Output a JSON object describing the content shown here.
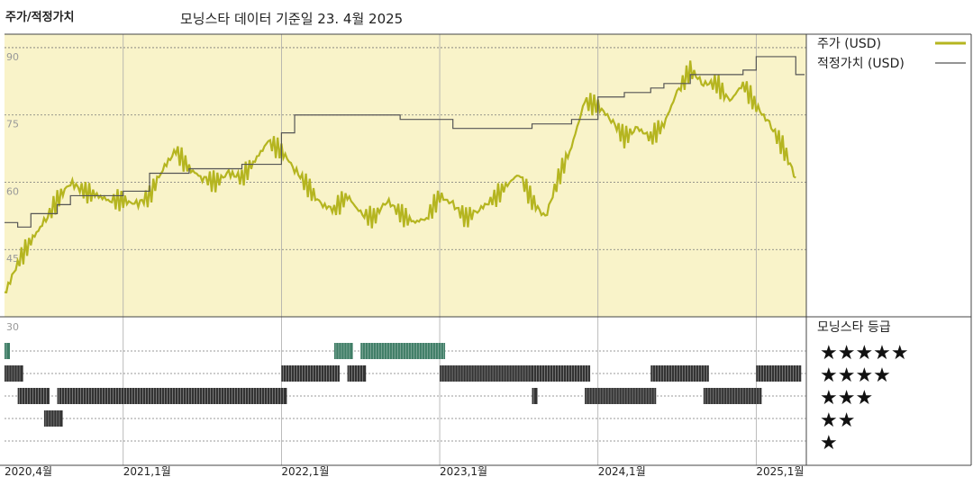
{
  "header": {
    "title": "주가/적정가치",
    "subtitle": "모닝스타 데이터 기준일 23. 4월 2025"
  },
  "colors": {
    "price": "#b5b520",
    "fair_value": "#555555",
    "panel_bg": "#f9f3c9",
    "bar_dark": "#333333",
    "bar_green": "#3f7d66"
  },
  "chart_data": {
    "type": "line",
    "title": "주가/적정가치",
    "subtitle": "모닝스타 데이터 기준일 23. 4월 2025",
    "ylim": [
      30,
      93
    ],
    "y_ticks": [
      90,
      75,
      60,
      45,
      30
    ],
    "x_ticks": [
      {
        "label": "2020,4월",
        "date": "2020-04"
      },
      {
        "label": "2021,1월",
        "date": "2021-01"
      },
      {
        "label": "2022,1월",
        "date": "2022-01"
      },
      {
        "label": "2023,1월",
        "date": "2023-01"
      },
      {
        "label": "2024,1월",
        "date": "2024-01"
      },
      {
        "label": "2025,1월",
        "date": "2025-01"
      }
    ],
    "xlim": [
      "2020-04",
      "2025-04"
    ],
    "legend_position": "right",
    "series": [
      {
        "name": "주가 (USD)",
        "color": "#b5b520",
        "points": [
          [
            "2020-04",
            35
          ],
          [
            "2020-05",
            42
          ],
          [
            "2020-06",
            47
          ],
          [
            "2020-07",
            51
          ],
          [
            "2020-08",
            56
          ],
          [
            "2020-09",
            60
          ],
          [
            "2020-10",
            58
          ],
          [
            "2020-11",
            57
          ],
          [
            "2020-12",
            56
          ],
          [
            "2021-01",
            56
          ],
          [
            "2021-02",
            55
          ],
          [
            "2021-03",
            57
          ],
          [
            "2021-04",
            63
          ],
          [
            "2021-05",
            67
          ],
          [
            "2021-06",
            63
          ],
          [
            "2021-07",
            61
          ],
          [
            "2021-08",
            60
          ],
          [
            "2021-09",
            62
          ],
          [
            "2021-10",
            61
          ],
          [
            "2021-11",
            65
          ],
          [
            "2021-12",
            69
          ],
          [
            "2022-01",
            67
          ],
          [
            "2022-02",
            63
          ],
          [
            "2022-03",
            59
          ],
          [
            "2022-04",
            55
          ],
          [
            "2022-05",
            54
          ],
          [
            "2022-06",
            57
          ],
          [
            "2022-07",
            53
          ],
          [
            "2022-08",
            52
          ],
          [
            "2022-09",
            56
          ],
          [
            "2022-10",
            53
          ],
          [
            "2022-11",
            51
          ],
          [
            "2022-12",
            52
          ],
          [
            "2023-01",
            57
          ],
          [
            "2023-02",
            55
          ],
          [
            "2023-03",
            52
          ],
          [
            "2023-04",
            54
          ],
          [
            "2023-05",
            56
          ],
          [
            "2023-06",
            59
          ],
          [
            "2023-07",
            62
          ],
          [
            "2023-08",
            56
          ],
          [
            "2023-09",
            52
          ],
          [
            "2023-10",
            61
          ],
          [
            "2023-11",
            68
          ],
          [
            "2023-12",
            78
          ],
          [
            "2024-01",
            77
          ],
          [
            "2024-02",
            74
          ],
          [
            "2024-03",
            70
          ],
          [
            "2024-04",
            72
          ],
          [
            "2024-05",
            70
          ],
          [
            "2024-06",
            73
          ],
          [
            "2024-07",
            80
          ],
          [
            "2024-08",
            85
          ],
          [
            "2024-09",
            82
          ],
          [
            "2024-10",
            82
          ],
          [
            "2024-11",
            78
          ],
          [
            "2024-12",
            82
          ],
          [
            "2025-01",
            77
          ],
          [
            "2025-02",
            73
          ],
          [
            "2025-03",
            68
          ],
          [
            "2025-04",
            61
          ]
        ]
      },
      {
        "name": "적정가치 (USD)",
        "color": "#555555",
        "points": [
          [
            "2020-04",
            51
          ],
          [
            "2020-05",
            50
          ],
          [
            "2020-06",
            53
          ],
          [
            "2020-08",
            55
          ],
          [
            "2020-09",
            57
          ],
          [
            "2021-01",
            58
          ],
          [
            "2021-03",
            62
          ],
          [
            "2021-06",
            63
          ],
          [
            "2021-10",
            64
          ],
          [
            "2021-12",
            64
          ],
          [
            "2022-01",
            71
          ],
          [
            "2022-02",
            75
          ],
          [
            "2022-07",
            75
          ],
          [
            "2022-10",
            74
          ],
          [
            "2023-01",
            74
          ],
          [
            "2023-02",
            72
          ],
          [
            "2023-05",
            72
          ],
          [
            "2023-08",
            73
          ],
          [
            "2023-11",
            74
          ],
          [
            "2024-01",
            79
          ],
          [
            "2024-03",
            80
          ],
          [
            "2024-05",
            81
          ],
          [
            "2024-06",
            82
          ],
          [
            "2024-08",
            84
          ],
          [
            "2024-10",
            84
          ],
          [
            "2024-12",
            85
          ],
          [
            "2025-01",
            88
          ],
          [
            "2025-04",
            84
          ]
        ]
      }
    ],
    "rating_panel": {
      "title": "모닝스타 등급",
      "levels": [
        "★★★★★",
        "★★★★",
        "★★★",
        "★★",
        "★"
      ],
      "segments": [
        {
          "stars": 5,
          "from": "2020-04",
          "to": "2020-04",
          "color": "#3f7d66"
        },
        {
          "stars": 4,
          "from": "2020-04",
          "to": "2020-05"
        },
        {
          "stars": 3,
          "from": "2020-05",
          "to": "2020-07"
        },
        {
          "stars": 2,
          "from": "2020-07",
          "to": "2020-08"
        },
        {
          "stars": 3,
          "from": "2020-08",
          "to": "2022-01"
        },
        {
          "stars": 4,
          "from": "2022-01",
          "to": "2022-05"
        },
        {
          "stars": 5,
          "from": "2022-05",
          "to": "2022-06",
          "color": "#3f7d66"
        },
        {
          "stars": 4,
          "from": "2022-06",
          "to": "2022-07"
        },
        {
          "stars": 5,
          "from": "2022-07",
          "to": "2023-01",
          "color": "#3f7d66"
        },
        {
          "stars": 4,
          "from": "2023-01",
          "to": "2023-08"
        },
        {
          "stars": 3,
          "from": "2023-08",
          "to": "2023-08"
        },
        {
          "stars": 4,
          "from": "2023-08",
          "to": "2023-12"
        },
        {
          "stars": 3,
          "from": "2023-12",
          "to": "2024-05"
        },
        {
          "stars": 4,
          "from": "2024-05",
          "to": "2024-09"
        },
        {
          "stars": 3,
          "from": "2024-09",
          "to": "2025-01"
        },
        {
          "stars": 4,
          "from": "2025-01",
          "to": "2025-04"
        }
      ]
    }
  }
}
